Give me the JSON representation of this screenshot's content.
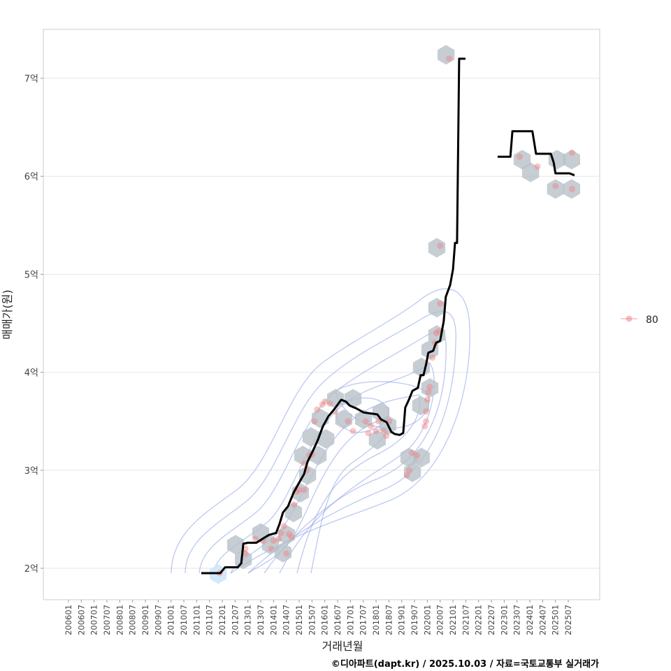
{
  "chart_data": {
    "type": "line",
    "title": "",
    "xlabel": "거래년월",
    "ylabel": "매매가(원)",
    "caption": "©디아파트(dapt.kr) / 2025.10.03 / 자료=국토교통부 실거래가",
    "xlim": [
      2005.0,
      2026.4
    ],
    "ylim": [
      1.68,
      7.52
    ],
    "x_ticks": [
      "200601",
      "200607",
      "200701",
      "200707",
      "200801",
      "200807",
      "200901",
      "200907",
      "201001",
      "201007",
      "201101",
      "201107",
      "201201",
      "201207",
      "201301",
      "201307",
      "201401",
      "201407",
      "201501",
      "201507",
      "201601",
      "201607",
      "201701",
      "201707",
      "201801",
      "201807",
      "201901",
      "201907",
      "202001",
      "202007",
      "202101",
      "202107",
      "202201",
      "202207",
      "202301",
      "202307",
      "202401",
      "202407",
      "202501",
      "202507"
    ],
    "y_ticks": [
      {
        "value": 2,
        "label": "2억"
      },
      {
        "value": 3,
        "label": "3억"
      },
      {
        "value": 4,
        "label": "4억"
      },
      {
        "value": 5,
        "label": "5억"
      },
      {
        "value": 6,
        "label": "6억"
      },
      {
        "value": 7,
        "label": "7억"
      }
    ],
    "grid": true,
    "legend": {
      "position": "right",
      "entries": [
        {
          "label": "80",
          "color": "#f08080"
        }
      ]
    },
    "colors": {
      "line": "#000000",
      "point": "#f08080",
      "hex": "#b8c0c8",
      "hex_low": "#cfe6fb",
      "contour": "#8fa3e8"
    },
    "series": [
      {
        "name": "moving-average-1",
        "x": [
          2011.18,
          2011.92,
          2012.11,
          2012.6,
          2012.74,
          2012.82,
          2013.0,
          2013.33,
          2013.63,
          2013.82,
          2014.1,
          2014.23,
          2014.37,
          2014.56,
          2014.78,
          2014.97,
          2015.19,
          2015.33,
          2015.54,
          2015.73,
          2015.93,
          2016.14,
          2016.36,
          2016.64,
          2016.83,
          2016.97,
          2017.24,
          2017.51,
          2017.79,
          2018.05,
          2018.19,
          2018.41,
          2018.6,
          2018.73,
          2018.92,
          2019.06,
          2019.14,
          2019.28,
          2019.42,
          2019.63,
          2019.74,
          2019.85,
          2019.96,
          2020.04,
          2020.23,
          2020.34,
          2020.5,
          2020.64,
          2020.72,
          2020.89,
          2021.0,
          2021.08,
          2021.16,
          2021.24,
          2021.49
        ],
        "y": [
          1.95,
          1.95,
          2.01,
          2.01,
          2.05,
          2.25,
          2.26,
          2.26,
          2.31,
          2.34,
          2.36,
          2.45,
          2.57,
          2.63,
          2.77,
          2.86,
          2.96,
          3.09,
          3.2,
          3.31,
          3.45,
          3.55,
          3.62,
          3.72,
          3.7,
          3.66,
          3.63,
          3.59,
          3.58,
          3.57,
          3.52,
          3.49,
          3.39,
          3.37,
          3.36,
          3.38,
          3.64,
          3.72,
          3.81,
          3.84,
          3.97,
          3.97,
          4.09,
          4.2,
          4.22,
          4.3,
          4.32,
          4.52,
          4.77,
          4.89,
          5.05,
          5.32,
          5.32,
          7.2,
          7.2
        ]
      },
      {
        "name": "moving-average-2",
        "x": [
          2022.74,
          2023.24,
          2023.32,
          2024.1,
          2024.24,
          2024.82,
          2024.93,
          2025.0,
          2025.55,
          2025.74
        ],
        "y": [
          6.2,
          6.2,
          6.46,
          6.46,
          6.23,
          6.23,
          6.14,
          6.03,
          6.03,
          6.01
        ]
      }
    ],
    "hexbins": [
      [
        2011.84,
        1.94,
        "low"
      ],
      [
        2012.52,
        2.24
      ],
      [
        2012.82,
        2.09
      ],
      [
        2013.5,
        2.36
      ],
      [
        2013.88,
        2.24
      ],
      [
        2014.51,
        2.34
      ],
      [
        2014.37,
        2.16
      ],
      [
        2014.78,
        2.57
      ],
      [
        2015.05,
        2.77
      ],
      [
        2015.33,
        2.95
      ],
      [
        2015.14,
        3.15
      ],
      [
        2015.74,
        3.15
      ],
      [
        2015.46,
        3.34
      ],
      [
        2016.04,
        3.32
      ],
      [
        2015.82,
        3.53
      ],
      [
        2016.42,
        3.73
      ],
      [
        2017.1,
        3.73
      ],
      [
        2016.74,
        3.52
      ],
      [
        2017.51,
        3.52
      ],
      [
        2018.19,
        3.59
      ],
      [
        2018.05,
        3.31
      ],
      [
        2018.46,
        3.46
      ],
      [
        2019.28,
        3.13
      ],
      [
        2019.77,
        3.13
      ],
      [
        2019.42,
        2.98
      ],
      [
        2019.74,
        3.66
      ],
      [
        2020.1,
        3.84
      ],
      [
        2019.77,
        4.05
      ],
      [
        2020.1,
        4.23
      ],
      [
        2020.37,
        4.38
      ],
      [
        2020.37,
        4.66
      ],
      [
        2020.37,
        5.27
      ],
      [
        2020.73,
        7.24
      ],
      [
        2023.7,
        6.17
      ],
      [
        2024.03,
        6.04
      ],
      [
        2025.06,
        6.17
      ],
      [
        2025.63,
        6.17
      ],
      [
        2025.0,
        5.87
      ],
      [
        2025.63,
        5.87
      ]
    ],
    "points": [
      [
        2011.9,
        1.95
      ],
      [
        2012.9,
        2.2
      ],
      [
        2012.9,
        2.15
      ],
      [
        2013.3,
        2.3
      ],
      [
        2013.6,
        2.28
      ],
      [
        2013.9,
        2.2
      ],
      [
        2014.0,
        2.28
      ],
      [
        2014.2,
        2.3
      ],
      [
        2014.3,
        2.36
      ],
      [
        2014.4,
        2.43
      ],
      [
        2014.5,
        2.15
      ],
      [
        2014.6,
        2.35
      ],
      [
        2014.7,
        2.32
      ],
      [
        2014.8,
        2.65
      ],
      [
        2014.9,
        2.78
      ],
      [
        2015.0,
        2.8
      ],
      [
        2015.2,
        2.8
      ],
      [
        2015.3,
        3.0
      ],
      [
        2015.2,
        3.07
      ],
      [
        2015.4,
        3.15
      ],
      [
        2015.5,
        3.16
      ],
      [
        2015.6,
        3.5
      ],
      [
        2015.7,
        3.62
      ],
      [
        2015.9,
        3.67
      ],
      [
        2016.0,
        3.7
      ],
      [
        2016.2,
        3.68
      ],
      [
        2016.4,
        3.6
      ],
      [
        2016.9,
        3.5
      ],
      [
        2017.1,
        3.4
      ],
      [
        2017.6,
        3.5
      ],
      [
        2017.7,
        3.38
      ],
      [
        2017.8,
        3.45
      ],
      [
        2018.0,
        3.4
      ],
      [
        2018.1,
        3.5
      ],
      [
        2018.3,
        3.4
      ],
      [
        2018.4,
        3.35
      ],
      [
        2018.5,
        3.5
      ],
      [
        2019.2,
        2.95
      ],
      [
        2019.3,
        3.0
      ],
      [
        2019.4,
        3.18
      ],
      [
        2019.6,
        3.15
      ],
      [
        2019.9,
        3.45
      ],
      [
        2019.95,
        3.5
      ],
      [
        2019.95,
        3.6
      ],
      [
        2020.0,
        3.72
      ],
      [
        2020.05,
        3.8
      ],
      [
        2020.1,
        3.85
      ],
      [
        2020.2,
        4.15
      ],
      [
        2020.3,
        4.3
      ],
      [
        2020.35,
        4.4
      ],
      [
        2020.45,
        4.42
      ],
      [
        2020.5,
        4.7
      ],
      [
        2020.5,
        5.29
      ],
      [
        2020.85,
        7.2
      ],
      [
        2023.6,
        6.2
      ],
      [
        2024.3,
        6.1
      ],
      [
        2025.0,
        5.9
      ],
      [
        2025.65,
        5.87
      ],
      [
        2025.65,
        6.24
      ]
    ]
  }
}
